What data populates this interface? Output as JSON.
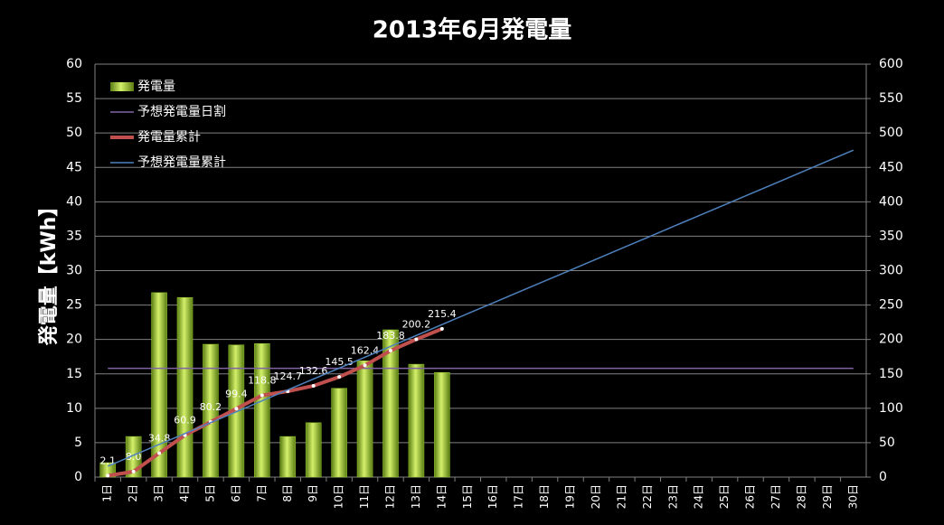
{
  "chart_data": {
    "type": "combo",
    "title": "2013年6月発電量",
    "ylabel": "発電量【kWh】",
    "categories": [
      "1日",
      "2日",
      "3日",
      "4日",
      "5日",
      "6日",
      "7日",
      "8日",
      "9日",
      "10日",
      "11日",
      "12日",
      "13日",
      "14日",
      "15日",
      "16日",
      "17日",
      "18日",
      "19日",
      "20日",
      "21日",
      "22日",
      "23日",
      "24日",
      "25日",
      "26日",
      "27日",
      "28日",
      "29日",
      "30日"
    ],
    "series": [
      {
        "name": "発電量",
        "type": "bar",
        "color": "#9acd32",
        "values": [
          2.1,
          5.9,
          26.8,
          26.1,
          19.3,
          19.2,
          19.4,
          5.9,
          7.9,
          12.9,
          16.9,
          21.4,
          16.4,
          15.2,
          null,
          null,
          null,
          null,
          null,
          null,
          null,
          null,
          null,
          null,
          null,
          null,
          null,
          null,
          null,
          null
        ]
      },
      {
        "name": "予想発電量日割",
        "type": "line",
        "color": "#8064a2",
        "values": [
          15.8,
          15.8,
          15.8,
          15.8,
          15.8,
          15.8,
          15.8,
          15.8,
          15.8,
          15.8,
          15.8,
          15.8,
          15.8,
          15.8,
          15.8,
          15.8,
          15.8,
          15.8,
          15.8,
          15.8,
          15.8,
          15.8,
          15.8,
          15.8,
          15.8,
          15.8,
          15.8,
          15.8,
          15.8,
          15.8
        ]
      },
      {
        "name": "発電量累計",
        "type": "line",
        "axis": "y2",
        "color": "#c0504d",
        "markers": true,
        "values": [
          2.1,
          8.0,
          34.8,
          60.9,
          80.2,
          99.4,
          118.8,
          124.7,
          132.6,
          145.5,
          162.4,
          183.8,
          200.2,
          215.4,
          null,
          null,
          null,
          null,
          null,
          null,
          null,
          null,
          null,
          null,
          null,
          null,
          null,
          null,
          null,
          null
        ],
        "value_labels": [
          "2.1",
          "8.0",
          "34.8",
          "60.9",
          "80.2",
          "99.4",
          "118.8",
          "124.7",
          "132.6",
          "145.5",
          "162.4",
          "183.8",
          "200.2",
          "215.4",
          null,
          null,
          null,
          null,
          null,
          null,
          null,
          null,
          null,
          null,
          null,
          null,
          null,
          null,
          null,
          null
        ]
      },
      {
        "name": "予想発電量累計",
        "type": "line",
        "axis": "y2",
        "color": "#4f81bd",
        "values": [
          15.8,
          31.7,
          47.5,
          63.3,
          79.2,
          95.0,
          110.8,
          126.7,
          142.5,
          158.3,
          174.2,
          190.0,
          205.8,
          221.7,
          237.5,
          253.3,
          269.2,
          285.0,
          300.8,
          316.7,
          332.5,
          348.3,
          364.2,
          380.0,
          395.8,
          411.7,
          427.5,
          443.3,
          459.2,
          475.0
        ]
      }
    ],
    "ylim": [
      0,
      60
    ],
    "yticks": [
      0,
      5,
      10,
      15,
      20,
      25,
      30,
      35,
      40,
      45,
      50,
      55,
      60
    ],
    "y2lim": [
      0,
      600
    ],
    "y2ticks": [
      0,
      50,
      100,
      150,
      200,
      250,
      300,
      350,
      400,
      450,
      500,
      550,
      600
    ],
    "grid": true,
    "legend": "upper left"
  }
}
